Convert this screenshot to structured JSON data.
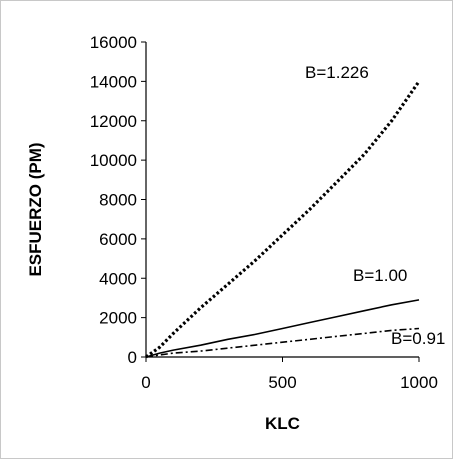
{
  "chart_data": {
    "type": "line",
    "title": "",
    "xlabel": "KLC",
    "ylabel": "ESFUERZO (PM)",
    "xlim": [
      0,
      1000
    ],
    "ylim": [
      0,
      16000
    ],
    "x_ticks": [
      "0",
      "500",
      "1000"
    ],
    "y_ticks": [
      "0",
      "2000",
      "4000",
      "6000",
      "8000",
      "10000",
      "12000",
      "14000",
      "16000"
    ],
    "grid": false,
    "legend": "none (series labeled inline near line ends)",
    "series": [
      {
        "name": "B=1.226",
        "line_style": "dotted",
        "color": "#000000",
        "x": [
          0,
          50,
          100,
          200,
          300,
          400,
          500,
          600,
          700,
          800,
          900,
          1000
        ],
        "y": [
          0,
          500,
          1200,
          2500,
          3700,
          4900,
          6200,
          7500,
          8900,
          10300,
          12000,
          14000
        ]
      },
      {
        "name": "B=1.00",
        "line_style": "solid",
        "color": "#000000",
        "x": [
          0,
          50,
          100,
          200,
          300,
          400,
          500,
          600,
          700,
          800,
          900,
          1000
        ],
        "y": [
          0,
          200,
          350,
          600,
          900,
          1150,
          1450,
          1750,
          2050,
          2350,
          2650,
          2900
        ]
      },
      {
        "name": "B=0.91",
        "line_style": "dashed",
        "color": "#000000",
        "x": [
          0,
          50,
          100,
          200,
          300,
          400,
          500,
          600,
          700,
          800,
          900,
          1000
        ],
        "y": [
          0,
          100,
          200,
          300,
          450,
          600,
          750,
          900,
          1050,
          1200,
          1350,
          1450
        ]
      }
    ]
  }
}
